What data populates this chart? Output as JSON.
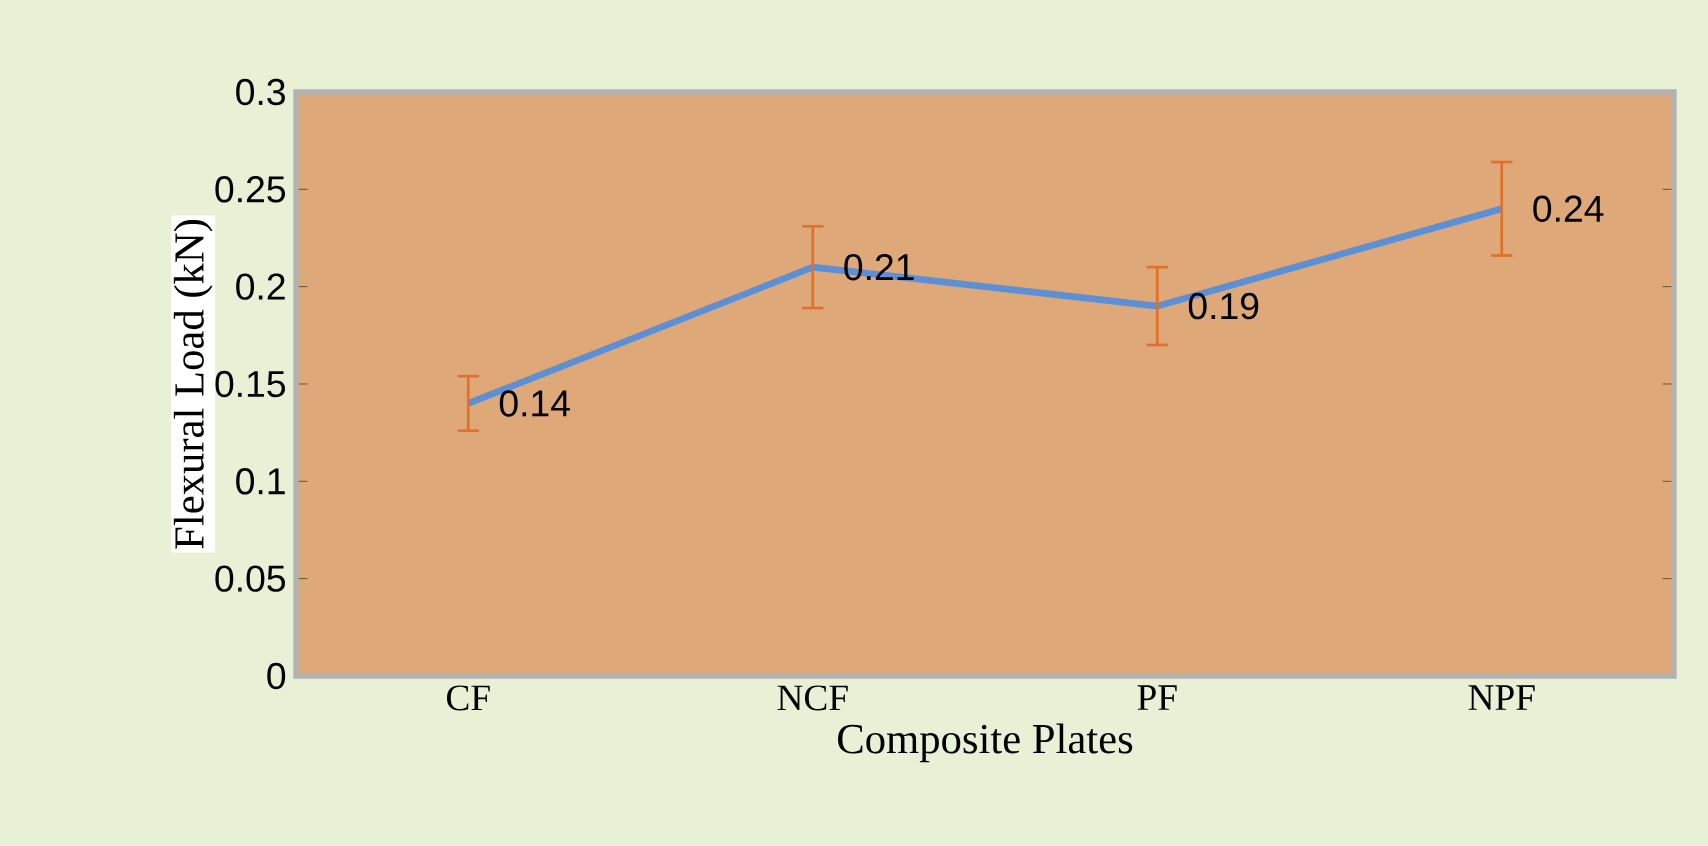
{
  "chart_data": {
    "type": "line",
    "xlabel": "Composite Plates",
    "ylabel": "Flexural Load (kN)",
    "categories": [
      "CF",
      "NCF",
      "PF",
      "NPF"
    ],
    "values": [
      0.14,
      0.21,
      0.19,
      0.24
    ],
    "errors": [
      0.014,
      0.021,
      0.02,
      0.024
    ],
    "color": "#5b8fd6",
    "ylim": [
      0,
      0.3
    ],
    "yticks": [
      0,
      0.05,
      0.1,
      0.15,
      0.2,
      0.25,
      0.3
    ],
    "data_labels": true,
    "marker": "none",
    "line_style": "solid"
  }
}
